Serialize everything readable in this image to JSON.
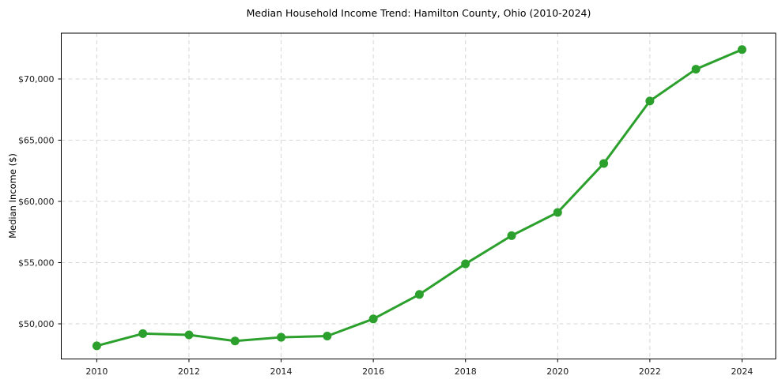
{
  "chart_data": {
    "type": "line",
    "title": "Median Household Income Trend: Hamilton County, Ohio (2010-2024)",
    "xlabel": "",
    "ylabel": "Median Income ($)",
    "series_name": "Median Household Income",
    "x": [
      2010,
      2011,
      2012,
      2013,
      2014,
      2015,
      2016,
      2017,
      2018,
      2019,
      2020,
      2021,
      2022,
      2023,
      2024
    ],
    "values": [
      48200,
      49200,
      49100,
      48600,
      48900,
      49000,
      50400,
      52400,
      54900,
      57200,
      59100,
      63100,
      68200,
      70800,
      72400
    ],
    "xticks": [
      2010,
      2012,
      2014,
      2016,
      2018,
      2020,
      2022,
      2024
    ],
    "xtick_labels": [
      "2010",
      "2012",
      "2014",
      "2016",
      "2018",
      "2020",
      "2022",
      "2024"
    ],
    "yticks": [
      50000,
      55000,
      60000,
      65000,
      70000
    ],
    "ytick_labels": [
      "$50,000",
      "$55,000",
      "$60,000",
      "$65,000",
      "$70,000"
    ],
    "xlim": [
      2009.23,
      2024.73
    ],
    "ylim": [
      47130,
      73740
    ],
    "grid": true,
    "grid_style": "dashed",
    "legend": "none",
    "marker": "circle",
    "colors": {
      "line": "#2ca02c",
      "marker": "#2ca02c",
      "grid": "#d6d6d6",
      "spine": "#000000",
      "tick_text": "#1a1a1a",
      "background": "#ffffff"
    }
  }
}
